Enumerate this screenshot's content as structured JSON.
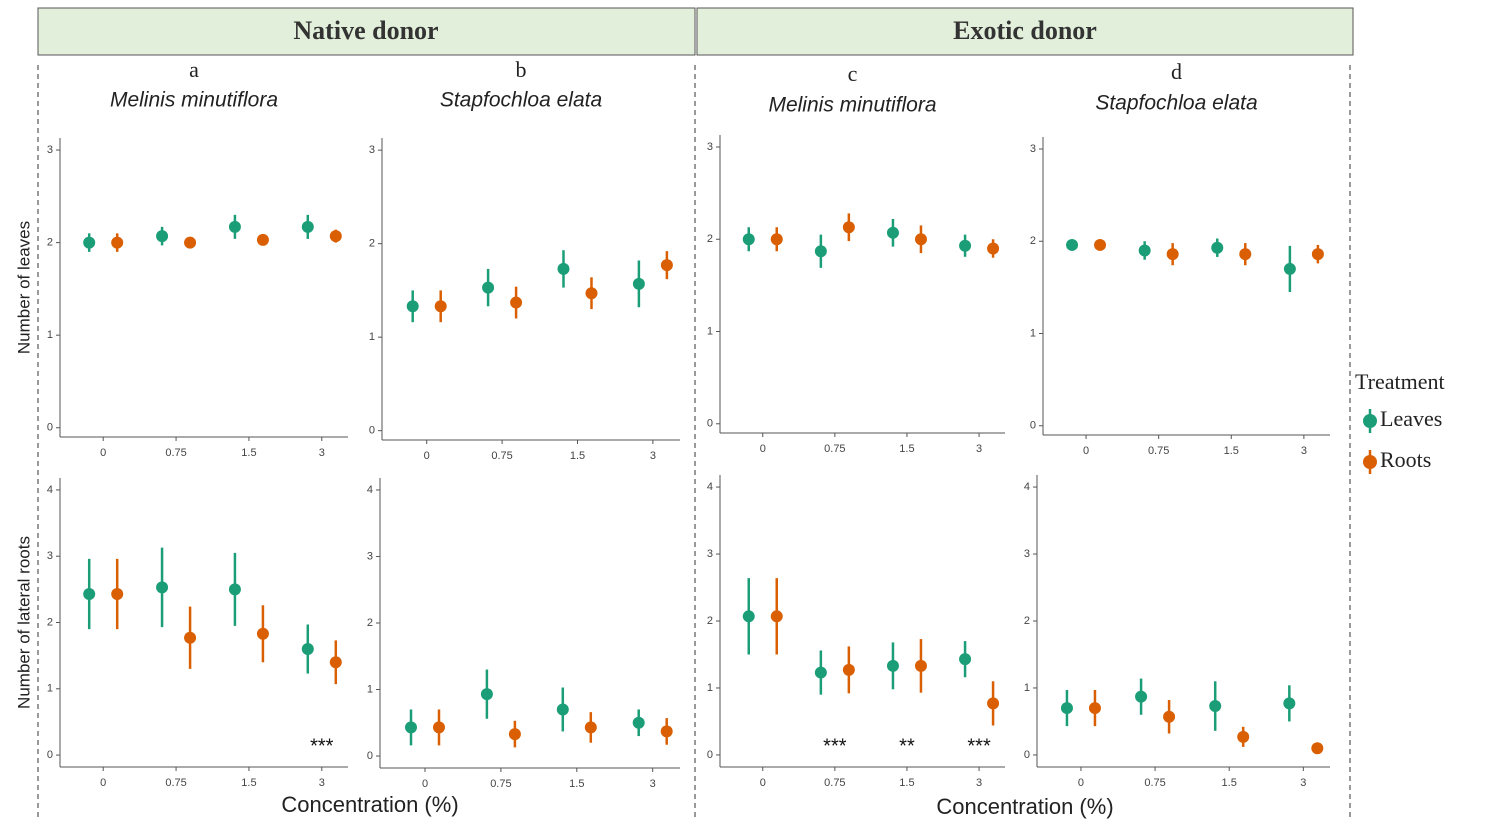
{
  "groups": [
    {
      "title": "Native donor",
      "x_label": "Concentration (%)"
    },
    {
      "title": "Exotic donor",
      "x_label": "Concentration (%)"
    }
  ],
  "legend_title": "Treatment",
  "chart_data": [
    {
      "type": "pointrange",
      "panel": "a",
      "title": "Melinis minutiflora",
      "y_label": "Number of leaves",
      "categories": [
        "0",
        "0.75",
        "1.5",
        "3"
      ],
      "ylim": [
        -0.1,
        3.13
      ],
      "yticks": [
        0,
        1,
        2,
        3
      ],
      "series": [
        {
          "name": "Leaves",
          "color": "#1b9e77",
          "values": [
            2.0,
            2.07,
            2.17,
            2.17
          ],
          "errors": [
            0.1,
            0.1,
            0.13,
            0.13
          ]
        },
        {
          "name": "Roots",
          "color": "#d95f02",
          "values": [
            2.0,
            2.0,
            2.03,
            2.07
          ],
          "errors": [
            0.1,
            0.03,
            0.03,
            0.07
          ]
        }
      ]
    },
    {
      "type": "pointrange",
      "panel": "b",
      "title": "Stapfochloa elata",
      "categories": [
        "0",
        "0.75",
        "1.5",
        "3"
      ],
      "ylim": [
        -0.1,
        3.13
      ],
      "yticks": [
        0,
        1,
        2,
        3
      ],
      "series": [
        {
          "name": "Leaves",
          "color": "#1b9e77",
          "values": [
            1.33,
            1.53,
            1.73,
            1.57
          ],
          "errors": [
            0.17,
            0.2,
            0.2,
            0.25
          ]
        },
        {
          "name": "Roots",
          "color": "#d95f02",
          "values": [
            1.33,
            1.37,
            1.47,
            1.77
          ],
          "errors": [
            0.17,
            0.17,
            0.17,
            0.15
          ]
        }
      ]
    },
    {
      "type": "pointrange",
      "panel": "c",
      "title": "Melinis minutiflora",
      "categories": [
        "0",
        "0.75",
        "1.5",
        "3"
      ],
      "ylim": [
        -0.1,
        3.13
      ],
      "yticks": [
        0,
        1,
        2,
        3
      ],
      "series": [
        {
          "name": "Leaves",
          "color": "#1b9e77",
          "values": [
            2.0,
            1.87,
            2.07,
            1.93
          ],
          "errors": [
            0.13,
            0.18,
            0.15,
            0.12
          ]
        },
        {
          "name": "Roots",
          "color": "#d95f02",
          "values": [
            2.0,
            2.13,
            2.0,
            1.9
          ],
          "errors": [
            0.13,
            0.15,
            0.15,
            0.1
          ]
        }
      ]
    },
    {
      "type": "pointrange",
      "panel": "d",
      "title": "Stapfochloa elata",
      "categories": [
        "0",
        "0.75",
        "1.5",
        "3"
      ],
      "ylim": [
        -0.1,
        3.13
      ],
      "yticks": [
        0,
        1,
        2,
        3
      ],
      "series": [
        {
          "name": "Leaves",
          "color": "#1b9e77",
          "values": [
            1.96,
            1.9,
            1.93,
            1.7
          ],
          "errors": [
            0.03,
            0.1,
            0.1,
            0.25
          ]
        },
        {
          "name": "Roots",
          "color": "#d95f02",
          "values": [
            1.96,
            1.86,
            1.86,
            1.86
          ],
          "errors": [
            0.03,
            0.12,
            0.12,
            0.1
          ]
        }
      ]
    },
    {
      "type": "pointrange",
      "y_label": "Number of lateral roots",
      "categories": [
        "0",
        "0.75",
        "1.5",
        "3"
      ],
      "ylim": [
        -0.18,
        4.18
      ],
      "yticks": [
        0,
        1,
        2,
        3,
        4
      ],
      "significance": [
        null,
        null,
        null,
        "***"
      ],
      "series": [
        {
          "name": "Leaves",
          "color": "#1b9e77",
          "values": [
            2.43,
            2.53,
            2.5,
            1.6
          ],
          "errors": [
            0.53,
            0.6,
            0.55,
            0.37
          ]
        },
        {
          "name": "Roots",
          "color": "#d95f02",
          "values": [
            2.43,
            1.77,
            1.83,
            1.4
          ],
          "errors": [
            0.53,
            0.47,
            0.43,
            0.33
          ]
        }
      ]
    },
    {
      "type": "pointrange",
      "categories": [
        "0",
        "0.75",
        "1.5",
        "3"
      ],
      "ylim": [
        -0.18,
        4.18
      ],
      "yticks": [
        0,
        1,
        2,
        3,
        4
      ],
      "series": [
        {
          "name": "Leaves",
          "color": "#1b9e77",
          "values": [
            0.43,
            0.93,
            0.7,
            0.5
          ],
          "errors": [
            0.27,
            0.37,
            0.33,
            0.2
          ]
        },
        {
          "name": "Roots",
          "color": "#d95f02",
          "values": [
            0.43,
            0.33,
            0.43,
            0.37
          ],
          "errors": [
            0.27,
            0.2,
            0.23,
            0.2
          ]
        }
      ]
    },
    {
      "type": "pointrange",
      "categories": [
        "0",
        "0.75",
        "1.5",
        "3"
      ],
      "ylim": [
        -0.18,
        4.18
      ],
      "yticks": [
        0,
        1,
        2,
        3,
        4
      ],
      "significance": [
        null,
        "***",
        "**",
        "***"
      ],
      "series": [
        {
          "name": "Leaves",
          "color": "#1b9e77",
          "values": [
            2.07,
            1.23,
            1.33,
            1.43
          ],
          "errors": [
            0.57,
            0.33,
            0.35,
            0.27
          ]
        },
        {
          "name": "Roots",
          "color": "#d95f02",
          "values": [
            2.07,
            1.27,
            1.33,
            0.77
          ],
          "errors": [
            0.57,
            0.35,
            0.4,
            0.33
          ]
        }
      ]
    },
    {
      "type": "pointrange",
      "categories": [
        "0",
        "0.75",
        "1.5",
        "3"
      ],
      "ylim": [
        -0.18,
        4.18
      ],
      "yticks": [
        0,
        1,
        2,
        3,
        4
      ],
      "series": [
        {
          "name": "Leaves",
          "color": "#1b9e77",
          "values": [
            0.7,
            0.87,
            0.73,
            0.77
          ],
          "errors": [
            0.27,
            0.27,
            0.37,
            0.27
          ]
        },
        {
          "name": "Roots",
          "color": "#d95f02",
          "values": [
            0.7,
            0.57,
            0.27,
            0.1
          ],
          "errors": [
            0.27,
            0.25,
            0.15,
            0.07
          ]
        }
      ]
    }
  ]
}
